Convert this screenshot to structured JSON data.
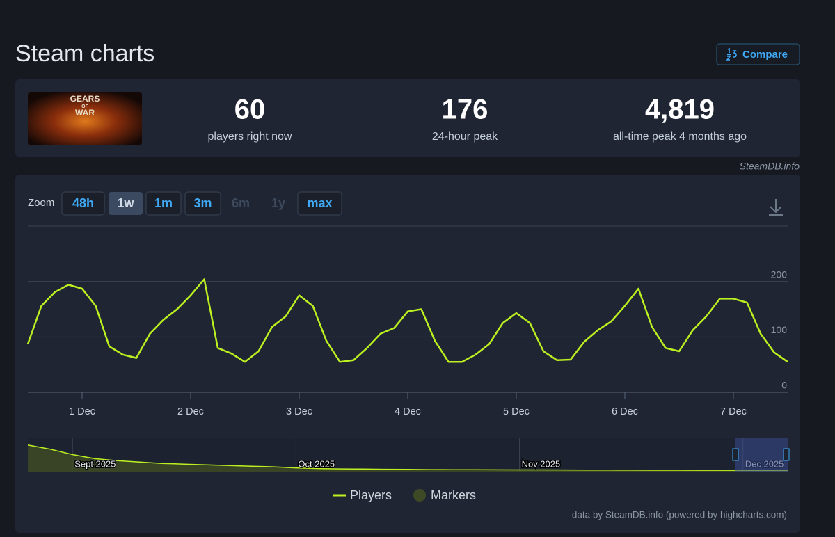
{
  "header": {
    "title": "Steam charts",
    "compare": "Compare"
  },
  "game": {
    "logo_lines": [
      "GEARS",
      "OF",
      "WAR"
    ]
  },
  "stats": [
    {
      "value": "60",
      "label": "players right now"
    },
    {
      "value": "176",
      "label": "24-hour peak"
    },
    {
      "value": "4,819",
      "label": "all-time peak 4 months ago"
    }
  ],
  "site_credit": "SteamDB.info",
  "zoom": {
    "label": "Zoom",
    "buttons": [
      {
        "label": "48h",
        "state": "default"
      },
      {
        "label": "1w",
        "state": "selected"
      },
      {
        "label": "1m",
        "state": "default"
      },
      {
        "label": "3m",
        "state": "default"
      },
      {
        "label": "6m",
        "state": "disabled"
      },
      {
        "label": "1y",
        "state": "disabled"
      },
      {
        "label": "max",
        "state": "default"
      }
    ]
  },
  "chart_data": [
    {
      "type": "line",
      "categories": [
        null,
        null,
        null,
        null,
        "1 Dec",
        null,
        null,
        null,
        null,
        null,
        null,
        null,
        "2 Dec",
        null,
        null,
        null,
        null,
        null,
        null,
        null,
        "3 Dec",
        null,
        null,
        null,
        null,
        null,
        null,
        null,
        "4 Dec",
        null,
        null,
        null,
        null,
        null,
        null,
        null,
        "5 Dec",
        null,
        null,
        null,
        null,
        null,
        null,
        null,
        "6 Dec",
        null,
        null,
        null,
        null,
        null,
        null,
        null,
        "7 Dec",
        null,
        null,
        null,
        null
      ],
      "series": [
        {
          "name": "Players",
          "color": "#bcf020",
          "values": [
            87,
            156,
            181,
            194,
            187,
            156,
            83,
            68,
            62,
            106,
            131,
            150,
            175,
            204,
            80,
            70,
            55,
            74,
            118,
            137,
            175,
            156,
            93,
            55,
            58,
            80,
            106,
            116,
            146,
            150,
            93,
            55,
            55,
            68,
            87,
            125,
            143,
            125,
            74,
            58,
            59,
            91,
            112,
            128,
            156,
            187,
            118,
            80,
            74,
            112,
            137,
            169,
            169,
            162,
            106,
            72,
            55
          ]
        }
      ],
      "markers": {
        "name": "Markers",
        "color": "#3e4a26"
      },
      "ylim": [
        0,
        300
      ],
      "yticks": [
        0,
        100,
        200
      ],
      "grid": true
    },
    {
      "type": "area",
      "categories": [
        null,
        null,
        "Sept 2025",
        null,
        null,
        null,
        null,
        null,
        null,
        null,
        null,
        null,
        "Oct 2025",
        null,
        null,
        null,
        null,
        null,
        null,
        null,
        null,
        null,
        "Nov 2025",
        null,
        null,
        null,
        null,
        null,
        null,
        null,
        null,
        null,
        "Dec 2025",
        null,
        null
      ],
      "series": [
        {
          "name": null,
          "color": "#bcf020",
          "values": [
            3900,
            3300,
            2500,
            1900,
            1600,
            1400,
            1200,
            1100,
            1000,
            900,
            800,
            700,
            550,
            450,
            400,
            380,
            350,
            330,
            300,
            290,
            280,
            270,
            260,
            250,
            240,
            230,
            220,
            210,
            200,
            200,
            190,
            190,
            180,
            180,
            170
          ]
        }
      ],
      "ylim": [
        0,
        5000
      ]
    }
  ],
  "footer": {
    "credit": "data by SteamDB.info (powered by highcharts.com)"
  }
}
